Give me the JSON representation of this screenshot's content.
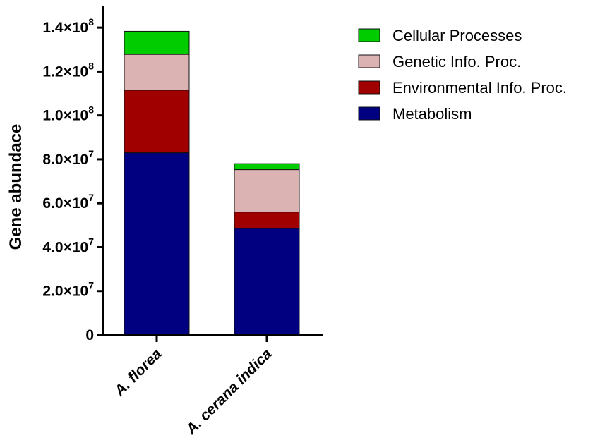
{
  "chart_data": {
    "type": "bar",
    "stacked": true,
    "categories": [
      "A. florea",
      "A. cerana indica"
    ],
    "series": [
      {
        "name": "Metabolism",
        "color": "#000080",
        "values": [
          83000000,
          48500000
        ]
      },
      {
        "name": "Environmental Info. Proc.",
        "color": "#a00000",
        "values": [
          28500000,
          7500000
        ]
      },
      {
        "name": "Genetic Info. Proc.",
        "color": "#dbb3b3",
        "values": [
          16300000,
          19300000
        ]
      },
      {
        "name": "Cellular Processes",
        "color": "#00cc00",
        "values": [
          10500000,
          2700000
        ]
      }
    ],
    "title": "",
    "xlabel": "",
    "ylabel": "Gene abundace",
    "ylim": [
      0,
      150000000
    ],
    "yticks": [
      {
        "value": 0,
        "mantissa": "0",
        "exp": ""
      },
      {
        "value": 20000000,
        "mantissa": "2.0×10",
        "exp": "7"
      },
      {
        "value": 40000000,
        "mantissa": "4.0×10",
        "exp": "7"
      },
      {
        "value": 60000000,
        "mantissa": "6.0×10",
        "exp": "7"
      },
      {
        "value": 80000000,
        "mantissa": "8.0×10",
        "exp": "7"
      },
      {
        "value": 100000000,
        "mantissa": "1.0×10",
        "exp": "8"
      },
      {
        "value": 120000000,
        "mantissa": "1.2×10",
        "exp": "8"
      },
      {
        "value": 140000000,
        "mantissa": "1.4×10",
        "exp": "8"
      }
    ],
    "legend_order": [
      "Cellular Processes",
      "Genetic Info. Proc.",
      "Environmental Info. Proc.",
      "Metabolism"
    ],
    "legend_position": "top-right",
    "grid": false
  }
}
